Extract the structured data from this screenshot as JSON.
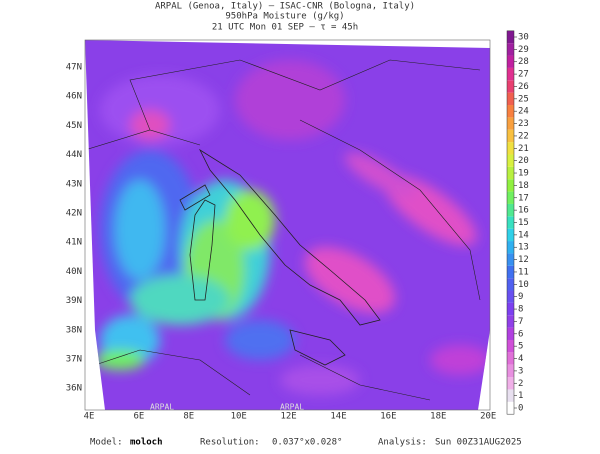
{
  "header": {
    "line1": "ARPAL (Genoa, Italy)  –  ISAC-CNR (Bologna, Italy)",
    "line2": "950hPa Moisture (g/kg)",
    "line3": "21 UTC Mon 01 SEP  –  τ = 45h"
  },
  "map": {
    "lat_labels": [
      "47N",
      "46N",
      "45N",
      "44N",
      "43N",
      "42N",
      "41N",
      "40N",
      "39N",
      "38N",
      "37N",
      "36N"
    ],
    "lon_labels": [
      "4E",
      "6E",
      "8E",
      "10E",
      "12E",
      "14E",
      "16E",
      "18E",
      "20E"
    ],
    "watermark": "ARPAL"
  },
  "colorbar": {
    "ticks": [
      0,
      1,
      2,
      3,
      4,
      5,
      6,
      7,
      8,
      9,
      10,
      11,
      12,
      13,
      14,
      15,
      16,
      17,
      18,
      19,
      20,
      21,
      22,
      23,
      24,
      25,
      26,
      27,
      28,
      29,
      30
    ],
    "colors": [
      "#ffffff",
      "#e8e0f0",
      "#f0b0e8",
      "#e890e0",
      "#e070d8",
      "#d050d8",
      "#b040e0",
      "#9040e8",
      "#7c40f0",
      "#6850f0",
      "#5060f0",
      "#4070f0",
      "#3890f0",
      "#30b0f0",
      "#30d0e8",
      "#38e0c0",
      "#50e890",
      "#70f060",
      "#90f040",
      "#b8f040",
      "#d8f040",
      "#f0e040",
      "#f8c040",
      "#f8a040",
      "#f88040",
      "#f06050",
      "#e84070",
      "#e03090",
      "#c020a0",
      "#a020a0",
      "#801890"
    ]
  },
  "footer": {
    "model_label": "Model:",
    "model": "moloch",
    "res_label": "Resolution:",
    "res": "0.037°x0.028°",
    "analysis_label": "Analysis:",
    "analysis": "Sun 00Z31AUG2025"
  }
}
